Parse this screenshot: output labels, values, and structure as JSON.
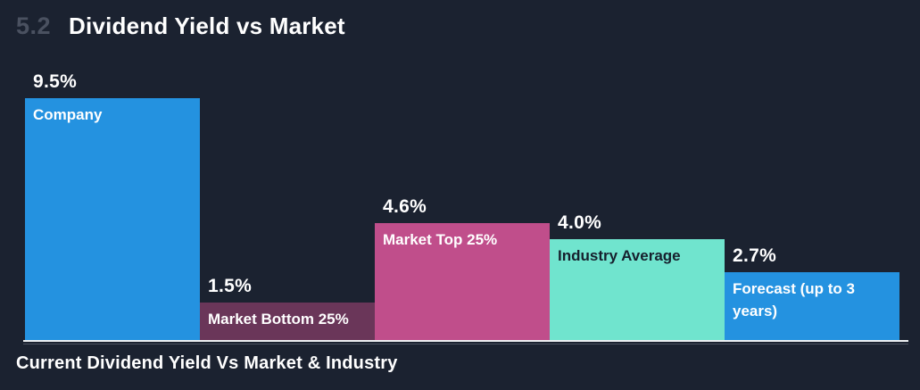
{
  "page": {
    "background": "#1b2230"
  },
  "header": {
    "section_number": "5.2",
    "title": "Dividend Yield vs Market"
  },
  "chart_data": {
    "type": "bar",
    "title": "Dividend Yield vs Market",
    "categories": [
      "Company",
      "Market Bottom 25%",
      "Market Top 25%",
      "Industry Average",
      "Forecast (up to 3 years)"
    ],
    "values": [
      9.5,
      1.5,
      4.6,
      4.0,
      2.7
    ],
    "value_labels": [
      "9.5%",
      "1.5%",
      "4.6%",
      "4.0%",
      "2.7%"
    ],
    "bar_colors": [
      "#2492e0",
      "#6a3659",
      "#c04e8b",
      "#70e4ce",
      "#2492e0"
    ],
    "label_colors": [
      "#ffffff",
      "#ffffff",
      "#ffffff",
      "#16202d",
      "#ffffff"
    ],
    "ylabel": "",
    "xlabel": "",
    "ylim": [
      0,
      10.5
    ],
    "grid": false,
    "legend": "none",
    "caption": "Current Dividend Yield Vs Market & Industry"
  },
  "footer": {
    "caption": "Current Dividend Yield Vs Market & Industry"
  }
}
